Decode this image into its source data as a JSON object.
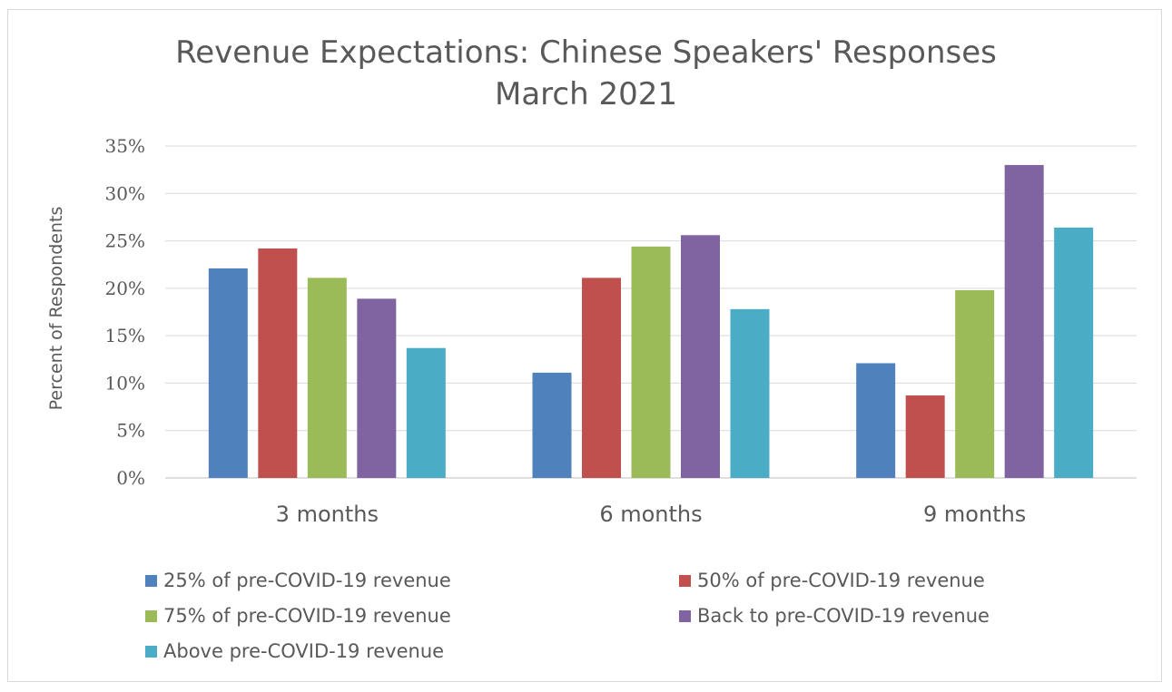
{
  "chart_data": {
    "type": "bar",
    "title": "Revenue Expectations: Chinese Speakers' Responses",
    "subtitle": "March 2021",
    "ylabel": "Percent of Respondents",
    "xlabel": "",
    "categories": [
      "3 months",
      "6 months",
      "9 months"
    ],
    "ylim": [
      0,
      35
    ],
    "yticks": [
      "0%",
      "5%",
      "10%",
      "15%",
      "20%",
      "25%",
      "30%",
      "35%"
    ],
    "grid": true,
    "legend_position": "bottom",
    "series": [
      {
        "name": "25% of pre-COVID-19 revenue",
        "color": "#4f81bd",
        "values": [
          22.1,
          11.1,
          12.1
        ]
      },
      {
        "name": "50% of pre-COVID-19 revenue",
        "color": "#c0504d",
        "values": [
          24.2,
          21.1,
          8.7
        ]
      },
      {
        "name": "75% of pre-COVID-19 revenue",
        "color": "#9bbb59",
        "values": [
          21.1,
          24.4,
          19.8
        ]
      },
      {
        "name": "Back to pre-COVID-19 revenue",
        "color": "#8064a2",
        "values": [
          18.9,
          25.6,
          33.0
        ]
      },
      {
        "name": "Above pre-COVID-19 revenue",
        "color": "#4bacc6",
        "values": [
          13.7,
          17.8,
          26.4
        ]
      }
    ]
  }
}
